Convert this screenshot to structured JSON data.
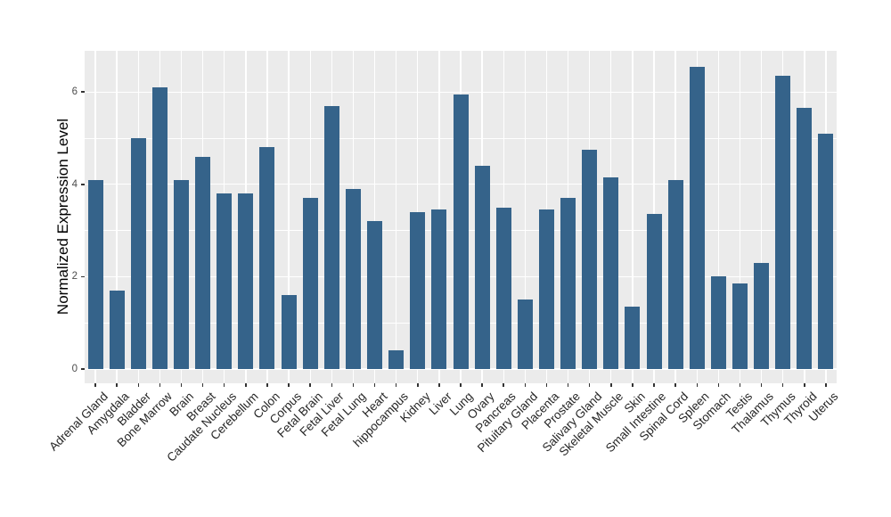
{
  "chart_data": {
    "type": "bar",
    "title": "",
    "xlabel": "",
    "ylabel": "Normalized Expression Level",
    "categories": [
      "Adrenal Gland",
      "Amygdala",
      "Bladder",
      "Bone Marrow",
      "Brain",
      "Breast",
      "Caudate Nucleus",
      "Cerebellum",
      "Colon",
      "Corpus",
      "Fetal Brain",
      "Fetal Liver",
      "Fetal Lung",
      "Heart",
      "hippocampus",
      "Kidney",
      "Liver",
      "Lung",
      "Ovary",
      "Pancreas",
      "Pituitary Gland",
      "Placenta",
      "Prostate",
      "Salivary Gland",
      "Skeletal Muscle",
      "Skin",
      "Small Intestine",
      "Spinal Cord",
      "Spleen",
      "Stomach",
      "Testis",
      "Thalamus",
      "Thymus",
      "Thyroid",
      "Uterus"
    ],
    "values": [
      4.1,
      1.7,
      5.0,
      6.1,
      4.1,
      4.6,
      3.8,
      3.8,
      4.8,
      1.6,
      3.7,
      5.7,
      3.9,
      3.2,
      0.4,
      3.4,
      3.45,
      5.95,
      4.4,
      3.5,
      1.5,
      3.45,
      3.7,
      4.75,
      4.15,
      1.35,
      3.35,
      4.1,
      6.55,
      2.0,
      1.85,
      2.3,
      6.35,
      5.65,
      5.1
    ],
    "yticks": [
      0,
      2,
      4,
      6
    ],
    "yticks_minor": [
      1,
      3,
      5
    ],
    "ylim": [
      0,
      6.9
    ],
    "grid": "horizontal major+minor and vertical major white gridlines on gray panel",
    "legend": "none",
    "colors": {
      "bar": "#35638A",
      "panel_bg": "#EBEBEB",
      "gridline": "#FFFFFF",
      "y_tick_text": "#4D4D4D",
      "x_tick_text": "#262626",
      "axis_title_text": "#000000",
      "background": "#FFFFFF"
    }
  }
}
